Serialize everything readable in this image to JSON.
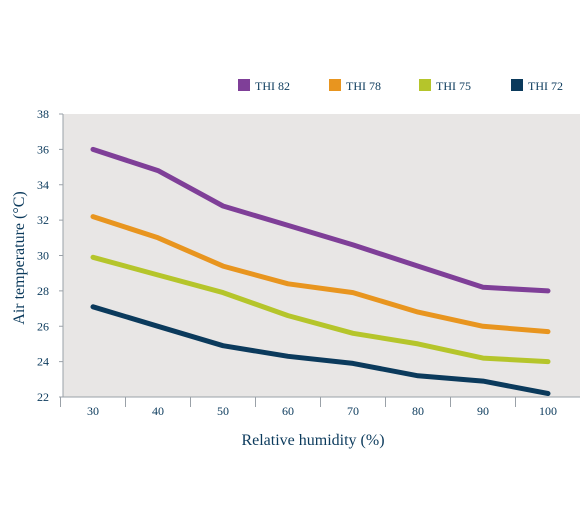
{
  "chart_data": {
    "type": "line",
    "title": "",
    "xlabel": "Relative humidity (%)",
    "ylabel": "Air temperature (°C)",
    "x": [
      30,
      40,
      50,
      60,
      70,
      80,
      90,
      100
    ],
    "xticks": [
      "30",
      "40",
      "50",
      "60",
      "70",
      "80",
      "90",
      "100"
    ],
    "yticks": [
      "22",
      "24",
      "26",
      "28",
      "30",
      "32",
      "34",
      "36",
      "38"
    ],
    "xlim": [
      25,
      105
    ],
    "ylim": [
      22,
      38
    ],
    "grid": false,
    "legend_position": "top",
    "plot_background": "#e8e6e5",
    "series": [
      {
        "name": "THI 82",
        "color": "#7f3f98",
        "values": [
          36.0,
          34.8,
          32.8,
          31.7,
          30.6,
          29.4,
          28.2,
          28.0
        ]
      },
      {
        "name": "THI 78",
        "color": "#e8951f",
        "values": [
          32.2,
          31.0,
          29.4,
          28.4,
          27.9,
          26.8,
          26.0,
          25.7
        ]
      },
      {
        "name": "THI 75",
        "color": "#b5c52b",
        "values": [
          29.9,
          28.9,
          27.9,
          26.6,
          25.6,
          25.0,
          24.2,
          24.0
        ]
      },
      {
        "name": "THI 72",
        "color": "#0b3a5c",
        "values": [
          27.1,
          26.0,
          24.9,
          24.3,
          23.9,
          23.2,
          22.9,
          22.2
        ]
      }
    ]
  }
}
